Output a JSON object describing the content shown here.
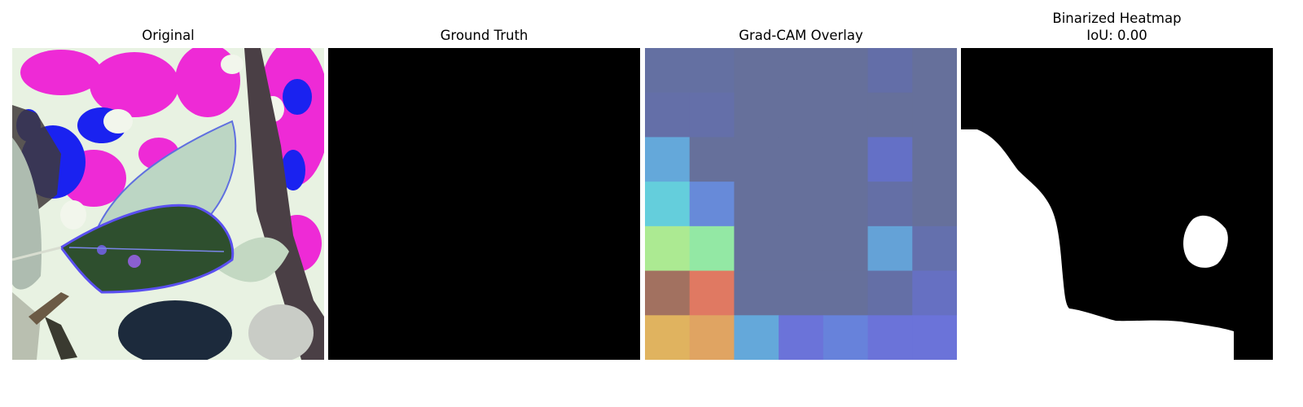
{
  "panels": [
    {
      "title": "Original"
    },
    {
      "title": "Ground Truth"
    },
    {
      "title": "Grad-CAM Overlay"
    },
    {
      "title": "Binarized Heatmap",
      "subtitle": "IoU: 0.00"
    }
  ],
  "colors": {
    "background": "#ffffff",
    "ground_truth_fill": "#000000",
    "heatmap_fill": "#000000",
    "heatmap_region": "#ffffff"
  },
  "gradcam_grid": [
    [
      "#6470a2",
      "#6470a2",
      "#66709b",
      "#66709b",
      "#66709b",
      "#636ea8",
      "#66709b"
    ],
    [
      "#646fa8",
      "#646fa9",
      "#66709b",
      "#66709b",
      "#66709b",
      "#66709b",
      "#66709b"
    ],
    [
      "#64a8da",
      "#66709b",
      "#66709b",
      "#66709b",
      "#66709b",
      "#6470c6",
      "#66709b"
    ],
    [
      "#64cedc",
      "#678ad9",
      "#66709b",
      "#66709b",
      "#66709b",
      "#646fa6",
      "#66709b"
    ],
    [
      "#acea92",
      "#93e8a4",
      "#66709b",
      "#66709b",
      "#66709b",
      "#64a2d7",
      "#6470ad"
    ],
    [
      "#a27160",
      "#e07962",
      "#66709b",
      "#66709b",
      "#66709b",
      "#646fa6",
      "#6670c2"
    ],
    [
      "#e0b35f",
      "#e0a462",
      "#64a8da",
      "#6b73d9",
      "#6782db",
      "#6b73d9",
      "#6b73d9"
    ]
  ]
}
